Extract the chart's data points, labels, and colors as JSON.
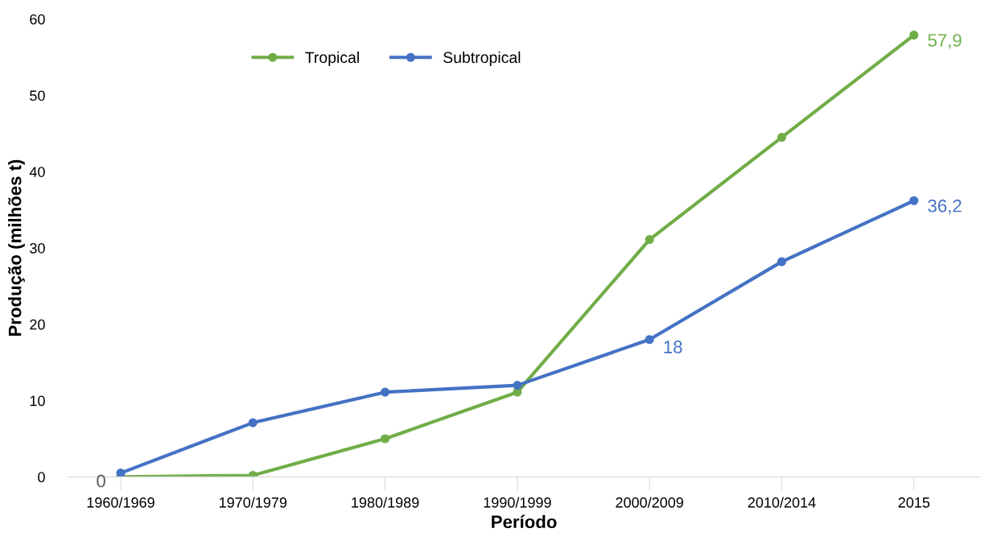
{
  "chart_data": {
    "type": "line",
    "xlabel": "Período",
    "ylabel": "Produção (milhões t)",
    "categories": [
      "1960/1969",
      "1970/1979",
      "1980/1989",
      "1990/1999",
      "2000/2009",
      "2010/2014",
      "2015"
    ],
    "series": [
      {
        "name": "Tropical",
        "color": "#70ad47",
        "values": [
          0,
          0.2,
          5.0,
          11.1,
          31.1,
          44.5,
          57.9
        ],
        "value_labels": [
          "0",
          null,
          null,
          null,
          null,
          null,
          "57,9"
        ]
      },
      {
        "name": "Subtropical",
        "color": "#4472c4",
        "values": [
          0.5,
          7.1,
          11.1,
          12.0,
          18,
          28.2,
          36.2
        ],
        "value_labels": [
          null,
          null,
          null,
          null,
          "18",
          null,
          "36,2"
        ]
      }
    ],
    "ylim": [
      0,
      60
    ],
    "yticks": [
      0,
      10,
      20,
      30,
      40,
      50,
      60
    ],
    "grid": false,
    "legend": "top",
    "marker": "circle",
    "line_style": "solid"
  }
}
